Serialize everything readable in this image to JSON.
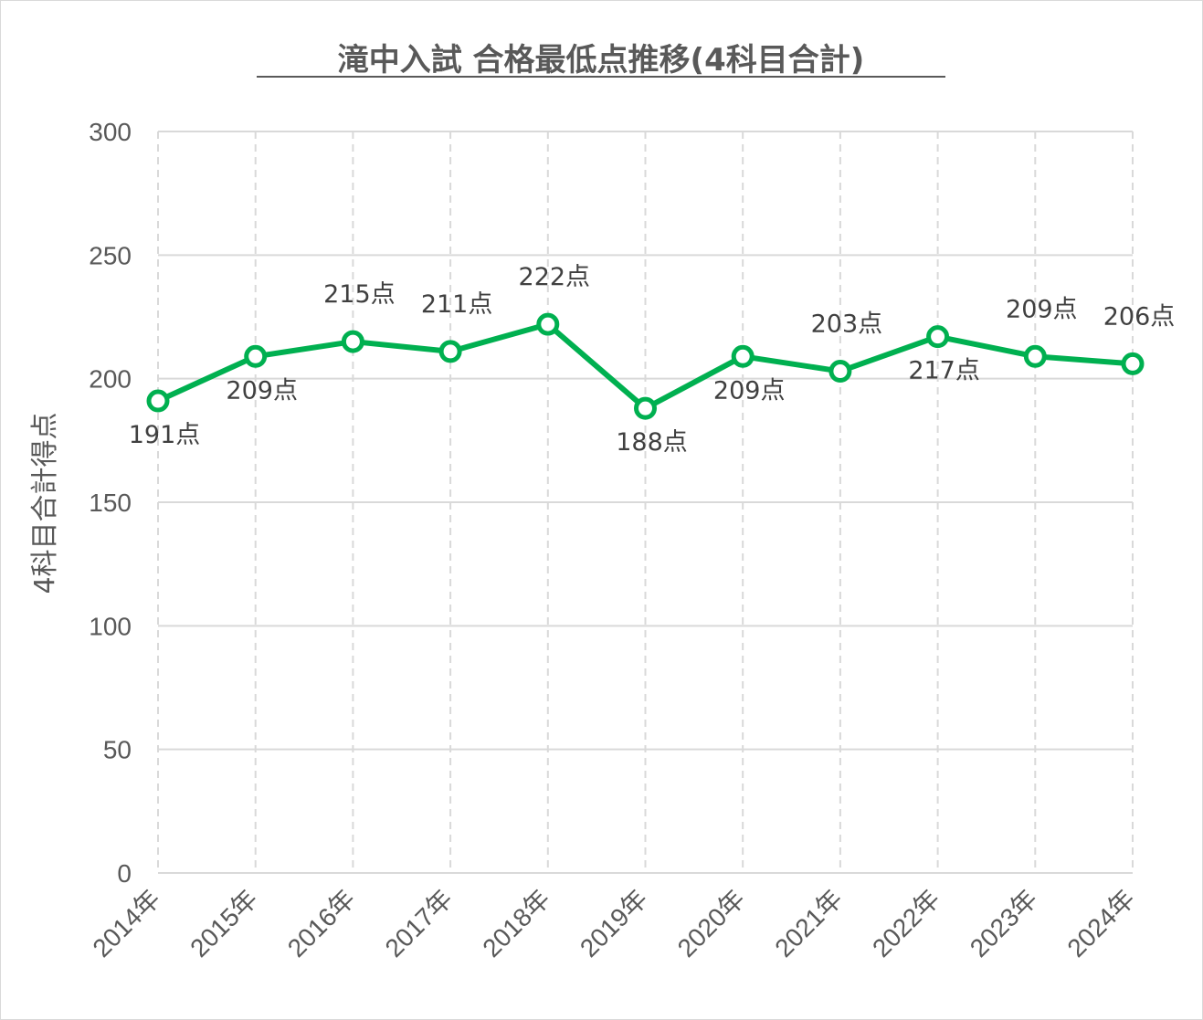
{
  "chart_data": {
    "type": "line",
    "title": "滝中入試 合格最低点推移(4科目合計)",
    "ylabel": "4科目合計得点",
    "xlabel": "",
    "ylim": [
      0,
      300
    ],
    "y_ticks": [
      "0",
      "50",
      "100",
      "150",
      "200",
      "250",
      "300"
    ],
    "categories": [
      "2014年",
      "2015年",
      "2016年",
      "2017年",
      "2018年",
      "2019年",
      "2020年",
      "2021年",
      "2022年",
      "2023年",
      "2024年"
    ],
    "series": [
      {
        "values": [
          191,
          209,
          215,
          211,
          222,
          188,
          209,
          203,
          217,
          209,
          206
        ],
        "labels": [
          "191点",
          "209点",
          "215点",
          "211点",
          "222点",
          "188点",
          "209点",
          "203点",
          "217点",
          "209点",
          "206点"
        ],
        "label_positions": [
          "below",
          "below",
          "above",
          "above",
          "above",
          "below",
          "below",
          "above",
          "below",
          "above",
          "above"
        ],
        "color": "#00b050"
      }
    ],
    "grid": {
      "horizontal": "solid",
      "vertical": "dashed"
    },
    "legend": "none"
  }
}
